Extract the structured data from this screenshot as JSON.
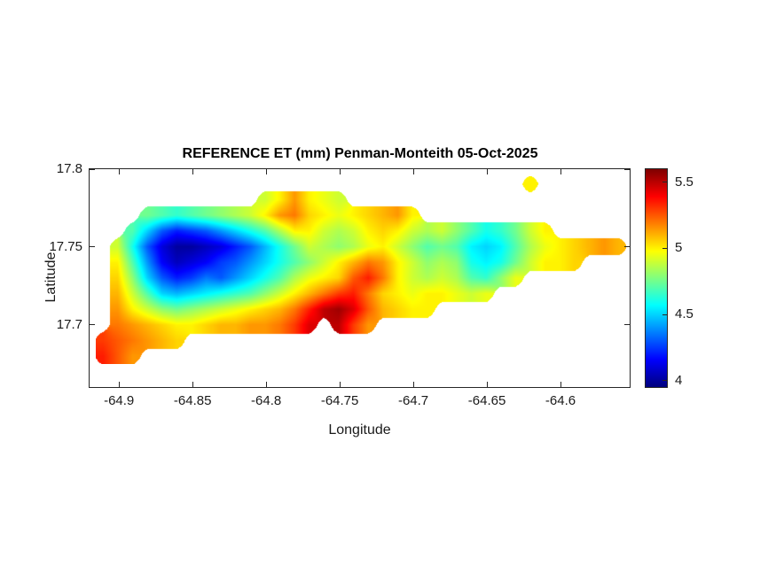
{
  "figure": {
    "title": "REFERENCE ET (mm) Penman-Monteith 05-Oct-2025",
    "xlabel": "Longitude",
    "ylabel": "Latitude",
    "x_tick_labels": [
      "-64.9",
      "-64.85",
      "-64.8",
      "-64.75",
      "-64.7",
      "-64.65",
      "-64.6"
    ],
    "y_tick_labels": [
      "17.8",
      "17.75",
      "17.7"
    ],
    "colorbar_tick_labels": [
      "5.5",
      "5",
      "4.5",
      "4"
    ],
    "background_color": "#ffffff",
    "axis_color": "#262626",
    "text_color": "#1a1a1a"
  },
  "chart_data": {
    "type": "heatmap",
    "title": "REFERENCE ET (mm) Penman-Monteith 05-Oct-2025",
    "xlabel": "Longitude",
    "ylabel": "Latitude",
    "xlim": [
      -64.92,
      -64.553
    ],
    "ylim": [
      17.66,
      17.8
    ],
    "x_ticks": [
      -64.9,
      -64.85,
      -64.8,
      -64.75,
      -64.7,
      -64.65,
      -64.6
    ],
    "y_ticks": [
      17.8,
      17.75,
      17.7
    ],
    "colormap": "jet",
    "clim": [
      3.95,
      5.6
    ],
    "colorbar_ticks": [
      5.5,
      5,
      4.5,
      4
    ],
    "grid": {
      "lon_start": -64.91,
      "lon_step": 0.01,
      "ncols": 36,
      "lat_start": 17.79,
      "lat_step": -0.01,
      "nrows": 12,
      "values": [
        [
          null,
          null,
          null,
          null,
          null,
          null,
          null,
          null,
          null,
          null,
          null,
          null,
          null,
          null,
          null,
          null,
          null,
          null,
          null,
          null,
          null,
          null,
          null,
          null,
          null,
          null,
          null,
          null,
          null,
          5.0,
          null,
          null,
          null,
          null,
          null,
          null
        ],
        [
          null,
          null,
          null,
          null,
          null,
          null,
          null,
          null,
          null,
          null,
          null,
          4.9,
          5.0,
          5.15,
          5.0,
          4.95,
          4.9,
          null,
          null,
          null,
          null,
          null,
          null,
          null,
          null,
          null,
          null,
          null,
          null,
          null,
          null,
          null,
          null,
          null,
          null,
          null
        ],
        [
          null,
          null,
          null,
          4.75,
          4.7,
          4.65,
          4.7,
          4.75,
          4.8,
          4.85,
          4.9,
          5.0,
          5.15,
          5.2,
          5.05,
          5.0,
          4.95,
          5.0,
          5.05,
          5.1,
          5.15,
          5.0,
          null,
          null,
          null,
          null,
          null,
          null,
          null,
          null,
          null,
          null,
          null,
          null,
          null,
          null
        ],
        [
          null,
          null,
          4.7,
          4.5,
          4.3,
          4.2,
          4.25,
          4.3,
          4.4,
          4.5,
          4.6,
          4.7,
          4.85,
          5.0,
          5.0,
          4.9,
          4.85,
          4.9,
          5.0,
          5.05,
          5.0,
          4.9,
          4.85,
          4.9,
          4.8,
          4.7,
          4.6,
          4.65,
          4.75,
          4.9,
          5.0,
          null,
          null,
          null,
          null,
          null
        ],
        [
          null,
          4.9,
          4.6,
          4.3,
          4.1,
          4.0,
          4.0,
          4.05,
          4.1,
          4.2,
          4.3,
          4.45,
          4.6,
          4.75,
          4.9,
          4.85,
          4.8,
          4.85,
          4.95,
          5.0,
          4.9,
          4.8,
          4.7,
          4.75,
          4.7,
          4.55,
          4.5,
          4.55,
          4.7,
          4.85,
          4.95,
          5.0,
          5.05,
          5.1,
          5.15,
          5.1
        ],
        [
          null,
          5.0,
          4.7,
          4.4,
          4.15,
          4.05,
          4.1,
          4.15,
          4.25,
          4.3,
          4.4,
          4.5,
          4.6,
          4.7,
          4.8,
          4.9,
          5.0,
          5.1,
          5.2,
          5.15,
          5.0,
          4.9,
          4.8,
          4.85,
          4.8,
          4.6,
          4.55,
          4.6,
          4.75,
          4.9,
          5.0,
          5.0,
          5.05,
          null,
          null,
          null
        ],
        [
          null,
          5.05,
          4.8,
          4.5,
          4.3,
          4.2,
          4.25,
          4.35,
          4.3,
          4.4,
          4.5,
          4.6,
          4.7,
          4.85,
          4.95,
          5.0,
          5.05,
          5.25,
          5.35,
          5.2,
          5.0,
          4.9,
          4.85,
          4.9,
          4.85,
          4.7,
          4.65,
          4.8,
          4.95,
          null,
          null,
          null,
          null,
          null,
          null,
          null
        ],
        [
          null,
          5.1,
          4.9,
          4.7,
          4.5,
          4.45,
          4.5,
          4.55,
          4.6,
          4.65,
          4.7,
          4.8,
          4.9,
          5.0,
          5.1,
          5.2,
          5.3,
          5.35,
          5.2,
          5.05,
          5.0,
          4.95,
          5.0,
          5.0,
          4.95,
          4.9,
          4.95,
          null,
          null,
          null,
          null,
          null,
          null,
          null,
          null,
          null
        ],
        [
          null,
          5.15,
          5.0,
          4.9,
          4.8,
          4.75,
          4.8,
          4.85,
          4.9,
          4.95,
          5.0,
          5.05,
          5.1,
          5.2,
          5.35,
          5.5,
          5.55,
          5.45,
          5.25,
          5.1,
          5.05,
          5.0,
          5.0,
          null,
          null,
          null,
          null,
          null,
          null,
          null,
          null,
          null,
          null,
          null,
          null,
          null
        ],
        [
          null,
          5.2,
          5.15,
          5.1,
          5.05,
          5.0,
          5.0,
          5.05,
          5.1,
          5.1,
          5.15,
          5.15,
          5.2,
          5.3,
          5.45,
          null,
          5.5,
          5.3,
          5.15,
          null,
          null,
          null,
          null,
          null,
          null,
          null,
          null,
          null,
          null,
          null,
          null,
          null,
          null,
          null,
          null,
          null
        ],
        [
          5.3,
          5.25,
          5.2,
          5.15,
          5.1,
          5.05,
          null,
          null,
          null,
          null,
          null,
          null,
          null,
          null,
          null,
          null,
          null,
          null,
          null,
          null,
          null,
          null,
          null,
          null,
          null,
          null,
          null,
          null,
          null,
          null,
          null,
          null,
          null,
          null,
          null,
          null
        ],
        [
          5.35,
          5.25,
          5.15,
          null,
          null,
          null,
          null,
          null,
          null,
          null,
          null,
          null,
          null,
          null,
          null,
          null,
          null,
          null,
          null,
          null,
          null,
          null,
          null,
          null,
          null,
          null,
          null,
          null,
          null,
          null,
          null,
          null,
          null,
          null,
          null,
          null
        ]
      ]
    }
  }
}
